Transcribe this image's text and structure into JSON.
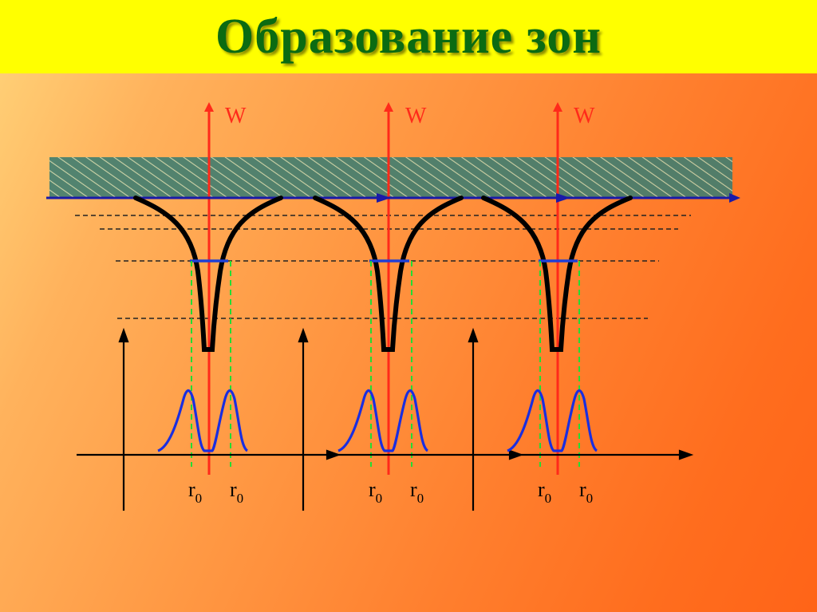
{
  "title": "Образование зон",
  "axis_label_w": "W",
  "radius_label": "r",
  "radius_subscript": "0",
  "colors": {
    "title_bg": "#ffff00",
    "title_text": "#0b6b12",
    "axis_red": "#ff2a1a",
    "axis_blue": "#1a1aa8",
    "curve_black": "#000000",
    "level_blue": "#1f3fd6",
    "guide_green": "#22dd33",
    "wave_blue": "#1a2ee0",
    "band_fill": "#3d7a6e"
  },
  "icons": {
    "arrow_up": "arrow-up-icon",
    "arrow_right": "arrow-right-icon"
  }
}
